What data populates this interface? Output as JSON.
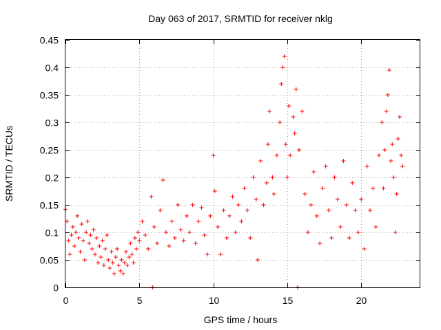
{
  "chart_data": {
    "type": "scatter",
    "title": "Day 063 of 2017, SRMTID for receiver nklg",
    "xlabel": "GPS time / hours",
    "ylabel": "SRMTID / TECUs",
    "xlim": [
      0,
      24
    ],
    "ylim": [
      0,
      0.45
    ],
    "xticks": [
      0,
      5,
      10,
      15,
      20
    ],
    "xtick_labels": [
      "0",
      "5",
      "10",
      "15",
      "20"
    ],
    "yticks": [
      0,
      0.05,
      0.1,
      0.15,
      0.2,
      0.25,
      0.3,
      0.35,
      0.4,
      0.45
    ],
    "ytick_labels": [
      "0",
      "0.05",
      "0.1",
      "0.15",
      "0.2",
      "0.25",
      "0.3",
      "0.35",
      "0.4",
      "0.45"
    ],
    "grid": true,
    "marker": "plus",
    "color": "#ff0000",
    "series": [
      {
        "name": "SRMTID",
        "points": [
          [
            0.0,
            0.142
          ],
          [
            0.1,
            0.12
          ],
          [
            0.2,
            0.085
          ],
          [
            0.3,
            0.06
          ],
          [
            0.4,
            0.095
          ],
          [
            0.5,
            0.11
          ],
          [
            0.6,
            0.075
          ],
          [
            0.7,
            0.1
          ],
          [
            0.8,
            0.13
          ],
          [
            0.9,
            0.09
          ],
          [
            1.0,
            0.065
          ],
          [
            1.1,
            0.115
          ],
          [
            1.2,
            0.085
          ],
          [
            1.3,
            0.05
          ],
          [
            1.4,
            0.1
          ],
          [
            1.5,
            0.12
          ],
          [
            1.6,
            0.08
          ],
          [
            1.7,
            0.095
          ],
          [
            1.8,
            0.07
          ],
          [
            1.9,
            0.105
          ],
          [
            2.0,
            0.06
          ],
          [
            2.1,
            0.09
          ],
          [
            2.2,
            0.045
          ],
          [
            2.3,
            0.075
          ],
          [
            2.4,
            0.055
          ],
          [
            2.5,
            0.085
          ],
          [
            2.6,
            0.04
          ],
          [
            2.7,
            0.07
          ],
          [
            2.8,
            0.095
          ],
          [
            2.9,
            0.05
          ],
          [
            3.0,
            0.035
          ],
          [
            3.1,
            0.065
          ],
          [
            3.2,
            0.045
          ],
          [
            3.3,
            0.025
          ],
          [
            3.4,
            0.055
          ],
          [
            3.5,
            0.07
          ],
          [
            3.6,
            0.04
          ],
          [
            3.7,
            0.03
          ],
          [
            3.8,
            0.05
          ],
          [
            3.9,
            0.025
          ],
          [
            4.0,
            0.045
          ],
          [
            4.1,
            0.065
          ],
          [
            4.2,
            0.04
          ],
          [
            4.3,
            0.055
          ],
          [
            4.4,
            0.08
          ],
          [
            4.5,
            0.06
          ],
          [
            4.6,
            0.045
          ],
          [
            4.7,
            0.09
          ],
          [
            4.8,
            0.07
          ],
          [
            4.9,
            0.1
          ],
          [
            5.0,
            0.085
          ],
          [
            5.2,
            0.12
          ],
          [
            5.4,
            0.095
          ],
          [
            5.6,
            0.07
          ],
          [
            5.8,
            0.165
          ],
          [
            5.9,
            0.0
          ],
          [
            6.0,
            0.11
          ],
          [
            6.2,
            0.08
          ],
          [
            6.4,
            0.14
          ],
          [
            6.6,
            0.195
          ],
          [
            6.8,
            0.1
          ],
          [
            7.0,
            0.075
          ],
          [
            7.2,
            0.12
          ],
          [
            7.4,
            0.09
          ],
          [
            7.6,
            0.15
          ],
          [
            7.8,
            0.105
          ],
          [
            8.0,
            0.085
          ],
          [
            8.2,
            0.13
          ],
          [
            8.4,
            0.1
          ],
          [
            8.6,
            0.15
          ],
          [
            8.8,
            0.08
          ],
          [
            9.0,
            0.12
          ],
          [
            9.2,
            0.145
          ],
          [
            9.4,
            0.095
          ],
          [
            9.6,
            0.06
          ],
          [
            9.8,
            0.13
          ],
          [
            10.0,
            0.24
          ],
          [
            10.1,
            0.175
          ],
          [
            10.3,
            0.11
          ],
          [
            10.5,
            0.06
          ],
          [
            10.7,
            0.14
          ],
          [
            10.9,
            0.09
          ],
          [
            11.1,
            0.13
          ],
          [
            11.3,
            0.165
          ],
          [
            11.5,
            0.1
          ],
          [
            11.7,
            0.15
          ],
          [
            11.9,
            0.12
          ],
          [
            12.1,
            0.18
          ],
          [
            12.3,
            0.14
          ],
          [
            12.5,
            0.09
          ],
          [
            12.7,
            0.2
          ],
          [
            12.9,
            0.16
          ],
          [
            13.0,
            0.05
          ],
          [
            13.2,
            0.23
          ],
          [
            13.4,
            0.15
          ],
          [
            13.6,
            0.19
          ],
          [
            13.7,
            0.26
          ],
          [
            13.8,
            0.32
          ],
          [
            14.0,
            0.2
          ],
          [
            14.1,
            0.17
          ],
          [
            14.3,
            0.24
          ],
          [
            14.5,
            0.3
          ],
          [
            14.6,
            0.37
          ],
          [
            14.7,
            0.4
          ],
          [
            14.8,
            0.42
          ],
          [
            14.9,
            0.26
          ],
          [
            15.0,
            0.2
          ],
          [
            15.1,
            0.33
          ],
          [
            15.2,
            0.24
          ],
          [
            15.4,
            0.31
          ],
          [
            15.5,
            0.28
          ],
          [
            15.6,
            0.36
          ],
          [
            15.7,
            0.0
          ],
          [
            15.8,
            0.25
          ],
          [
            16.0,
            0.32
          ],
          [
            16.2,
            0.17
          ],
          [
            16.4,
            0.1
          ],
          [
            16.6,
            0.15
          ],
          [
            16.8,
            0.21
          ],
          [
            17.0,
            0.13
          ],
          [
            17.2,
            0.08
          ],
          [
            17.4,
            0.18
          ],
          [
            17.6,
            0.22
          ],
          [
            17.8,
            0.14
          ],
          [
            18.0,
            0.09
          ],
          [
            18.2,
            0.2
          ],
          [
            18.4,
            0.16
          ],
          [
            18.6,
            0.11
          ],
          [
            18.8,
            0.23
          ],
          [
            19.0,
            0.15
          ],
          [
            19.2,
            0.09
          ],
          [
            19.4,
            0.19
          ],
          [
            19.6,
            0.14
          ],
          [
            19.8,
            0.1
          ],
          [
            20.0,
            0.16
          ],
          [
            20.2,
            0.07
          ],
          [
            20.4,
            0.22
          ],
          [
            20.6,
            0.14
          ],
          [
            20.8,
            0.18
          ],
          [
            21.0,
            0.11
          ],
          [
            21.2,
            0.24
          ],
          [
            21.4,
            0.3
          ],
          [
            21.5,
            0.18
          ],
          [
            21.6,
            0.25
          ],
          [
            21.7,
            0.32
          ],
          [
            21.8,
            0.35
          ],
          [
            21.9,
            0.395
          ],
          [
            22.0,
            0.23
          ],
          [
            22.1,
            0.26
          ],
          [
            22.2,
            0.2
          ],
          [
            22.3,
            0.1
          ],
          [
            22.4,
            0.17
          ],
          [
            22.5,
            0.27
          ],
          [
            22.6,
            0.31
          ],
          [
            22.7,
            0.24
          ],
          [
            22.8,
            0.22
          ]
        ]
      }
    ]
  }
}
